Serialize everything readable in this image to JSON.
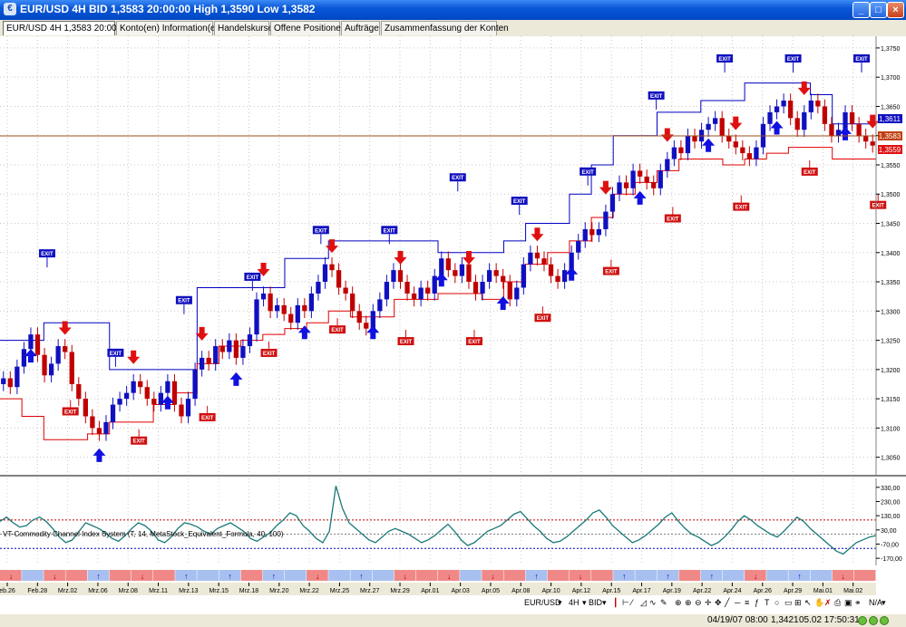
{
  "window": {
    "title": "EUR/USD 4H BID 1,3583 20:00:00 High 1,3590 Low 1,3582"
  },
  "tabs": [
    "EUR/USD 4H 1,3583 20:00:00",
    "Konto(en) Information(en)",
    "Handelskurse",
    "Offene Positionen",
    "Aufträge",
    "Zusammenfassung der Konten"
  ],
  "price_axis": {
    "ticks": [
      "1,3750",
      "1,3700",
      "1,3650",
      "1,3600",
      "1,3550",
      "1,3500",
      "1,3450",
      "1,3400",
      "1,3350",
      "1,3300",
      "1,3250",
      "1,3200",
      "1,3150",
      "1,3100",
      "1,3050"
    ],
    "marker_upper": "1,3611",
    "marker_current": "1,3583",
    "marker_lower": "1,3559"
  },
  "indicator": {
    "label": "VT-Commodity Channel Index System (T, 14, MetaStock_Equivalent_Formula, 40, 100)",
    "ticks": [
      "330,00",
      "230,00",
      "130,00",
      "30,00",
      "-70,00",
      "-170,00"
    ]
  },
  "date_axis": [
    "eb.26",
    "Feb.28",
    "Mrz.02",
    "Mrz.06",
    "Mrz.08",
    "Mrz.11",
    "Mrz.13",
    "Mrz.15",
    "Mrz.18",
    "Mrz.20",
    "Mrz.22",
    "Mrz.25",
    "Mrz.27",
    "Mrz.29",
    "Apr.01",
    "Apr.03",
    "Apr.05",
    "Apr.08",
    "Apr.10",
    "Apr.12",
    "Apr.15",
    "Apr.17",
    "Apr.19",
    "Apr.22",
    "Apr.24",
    "Apr.26",
    "Apr.29",
    "Mai.01",
    "Mai.02"
  ],
  "signals": {
    "exit_label": "EXIT"
  },
  "toolbar": {
    "symbol": "EUR/USD",
    "period": "4H",
    "side": "BID",
    "zoom": "N/A"
  },
  "statusbar": {
    "date": "04/19/07 08:00",
    "price": "1,3421",
    "time": "05.02 17:50:31"
  },
  "colors": {
    "up_arrow": "#1010e0",
    "down_arrow": "#e01010",
    "upper_band": "#0000c0",
    "lower_band": "#e00000",
    "cci": "#1a7878"
  },
  "chart_data": [
    {
      "type": "candlestick",
      "title": "EUR/USD 4H BID",
      "ylim": [
        1.302,
        1.377
      ],
      "price_lines": [
        {
          "name": "current",
          "value": 1.3583
        },
        {
          "name": "upper",
          "value": 1.3611
        },
        {
          "name": "lower",
          "value": 1.3559
        }
      ],
      "close": [
        1.3185,
        1.317,
        1.3205,
        1.3235,
        1.326,
        1.3225,
        1.319,
        1.321,
        1.324,
        1.323,
        1.3175,
        1.315,
        1.312,
        1.31,
        1.309,
        1.311,
        1.314,
        1.315,
        1.316,
        1.318,
        1.317,
        1.315,
        1.314,
        1.316,
        1.318,
        1.314,
        1.312,
        1.315,
        1.32,
        1.322,
        1.321,
        1.324,
        1.323,
        1.325,
        1.322,
        1.324,
        1.326,
        1.332,
        1.333,
        1.33,
        1.331,
        1.3295,
        1.328,
        1.331,
        1.33,
        1.333,
        1.335,
        1.338,
        1.337,
        1.334,
        1.333,
        1.33,
        1.328,
        1.327,
        1.33,
        1.332,
        1.335,
        1.337,
        1.335,
        1.333,
        1.332,
        1.334,
        1.333,
        1.336,
        1.339,
        1.337,
        1.336,
        1.338,
        1.335,
        1.333,
        1.335,
        1.337,
        1.336,
        1.335,
        1.332,
        1.334,
        1.338,
        1.34,
        1.339,
        1.338,
        1.336,
        1.335,
        1.337,
        1.34,
        1.342,
        1.344,
        1.343,
        1.344,
        1.347,
        1.35,
        1.352,
        1.351,
        1.354,
        1.353,
        1.352,
        1.351,
        1.354,
        1.356,
        1.358,
        1.357,
        1.36,
        1.359,
        1.361,
        1.362,
        1.363,
        1.36,
        1.359,
        1.358,
        1.357,
        1.356,
        1.358,
        1.362,
        1.364,
        1.365,
        1.366,
        1.363,
        1.361,
        1.364,
        1.366,
        1.365,
        1.362,
        1.36,
        1.361,
        1.364,
        1.362,
        1.36,
        1.359,
        1.3583
      ],
      "upper_band": [
        1.325,
        1.325,
        1.328,
        1.328,
        1.328,
        1.32,
        1.32,
        1.32,
        1.32,
        1.334,
        1.334,
        1.334,
        1.334,
        1.339,
        1.339,
        1.342,
        1.342,
        1.342,
        1.342,
        1.342,
        1.34,
        1.34,
        1.34,
        1.342,
        1.345,
        1.345,
        1.35,
        1.355,
        1.36,
        1.36,
        1.364,
        1.364,
        1.366,
        1.366,
        1.369,
        1.369,
        1.369,
        1.367,
        1.362,
        1.362
      ],
      "lower_band": [
        1.315,
        1.312,
        1.308,
        1.308,
        1.309,
        1.311,
        1.311,
        1.314,
        1.316,
        1.321,
        1.324,
        1.325,
        1.326,
        1.327,
        1.328,
        1.33,
        1.329,
        1.329,
        1.332,
        1.332,
        1.333,
        1.333,
        1.332,
        1.335,
        1.338,
        1.34,
        1.342,
        1.346,
        1.35,
        1.352,
        1.354,
        1.356,
        1.356,
        1.355,
        1.356,
        1.357,
        1.358,
        1.358,
        1.356,
        1.356
      ],
      "buy_signals": 13,
      "sell_signals": 13
    },
    {
      "type": "line",
      "title": "VT-Commodity Channel Index System (T, 14, MetaStock_Equivalent_Formula, 40, 100)",
      "ylim": [
        -220,
        380
      ],
      "reference_lines": [
        100,
        0,
        -100
      ],
      "values": [
        90,
        120,
        80,
        50,
        60,
        100,
        120,
        90,
        40,
        -20,
        -60,
        -40,
        20,
        80,
        60,
        40,
        10,
        -30,
        -50,
        -10,
        40,
        80,
        60,
        20,
        -40,
        -60,
        -20,
        40,
        80,
        70,
        50,
        20,
        0,
        40,
        60,
        80,
        50,
        20,
        -30,
        -50,
        -20,
        10,
        60,
        100,
        150,
        130,
        60,
        20,
        -30,
        -60,
        20,
        340,
        180,
        80,
        40,
        0,
        -40,
        -60,
        -20,
        20,
        40,
        20,
        0,
        -30,
        -60,
        -40,
        -10,
        30,
        70,
        20,
        -40,
        -80,
        -60,
        -20,
        20,
        40,
        60,
        100,
        140,
        160,
        110,
        60,
        20,
        -30,
        -60,
        -50,
        -20,
        20,
        60,
        100,
        150,
        170,
        120,
        60,
        20,
        -20,
        -60,
        -40,
        -10,
        30,
        70,
        120,
        150,
        90,
        40,
        0,
        -20,
        -50,
        -80,
        -60,
        -20,
        30,
        90,
        130,
        100,
        60,
        30,
        0,
        -20,
        20,
        70,
        120,
        90,
        40,
        0,
        -40,
        -80,
        -120,
        -140,
        -100,
        -60,
        -40,
        -20,
        -10
      ]
    }
  ]
}
